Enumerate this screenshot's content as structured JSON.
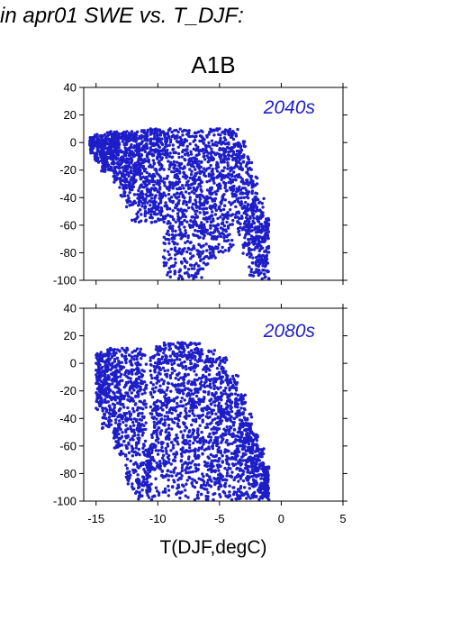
{
  "page": {
    "title": "in apr01 SWE vs. T_DJF:"
  },
  "colors": {
    "points": "#1e1ec8",
    "panel_label": "#1e1ec8",
    "axes": "#000000"
  },
  "chart_data": {
    "type": "scatter",
    "title": "A1B",
    "xlabel": "T(DJF,degC)",
    "xlim": [
      -16,
      5
    ],
    "x_ticks": [
      -15,
      -10,
      -5,
      0,
      5
    ],
    "grid": false,
    "panels": [
      {
        "label": "2040s",
        "ylim": [
          -100,
          40
        ],
        "y_ticks": [
          40,
          20,
          0,
          -20,
          -40,
          -60,
          -80,
          -100
        ],
        "point_cloud": [
          {
            "x": -15.5,
            "y": 1
          },
          {
            "x": -15.2,
            "y": -3
          },
          {
            "x": -14.5,
            "y": 4
          },
          {
            "x": -14.0,
            "y": -8
          },
          {
            "x": -13.5,
            "y": 6
          },
          {
            "x": -13.5,
            "y": -15
          },
          {
            "x": -13.0,
            "y": -22
          },
          {
            "x": -12.5,
            "y": 8
          },
          {
            "x": -12.0,
            "y": -30
          },
          {
            "x": -11.5,
            "y": -40
          },
          {
            "x": -11.0,
            "y": -50
          },
          {
            "x": -10.5,
            "y": -58
          },
          {
            "x": -10.0,
            "y": 9
          },
          {
            "x": -9.0,
            "y": 10
          },
          {
            "x": -8.0,
            "y": 8
          },
          {
            "x": -7.0,
            "y": 7
          },
          {
            "x": -6.0,
            "y": 4
          },
          {
            "x": -5.0,
            "y": 10
          },
          {
            "x": -4.5,
            "y": 2
          },
          {
            "x": -4.0,
            "y": -10
          },
          {
            "x": -3.5,
            "y": -25
          },
          {
            "x": -3.0,
            "y": -40
          },
          {
            "x": -2.5,
            "y": -55
          },
          {
            "x": -2.0,
            "y": -68
          },
          {
            "x": -1.5,
            "y": -82
          },
          {
            "x": -1.0,
            "y": -99
          },
          {
            "x": -5.5,
            "y": -80
          },
          {
            "x": -6.5,
            "y": -85
          },
          {
            "x": -8.0,
            "y": -99
          },
          {
            "x": -7.5,
            "y": -92
          }
        ]
      },
      {
        "label": "2080s",
        "ylim": [
          -100,
          40
        ],
        "y_ticks": [
          40,
          20,
          0,
          -20,
          -40,
          -60,
          -80,
          -100
        ],
        "point_cloud": [
          {
            "x": -15.0,
            "y": -5
          },
          {
            "x": -14.7,
            "y": 4
          },
          {
            "x": -14.5,
            "y": -20
          },
          {
            "x": -14.0,
            "y": 8
          },
          {
            "x": -13.5,
            "y": -35
          },
          {
            "x": -13.0,
            "y": -48
          },
          {
            "x": -12.5,
            "y": 11
          },
          {
            "x": -12.0,
            "y": -62
          },
          {
            "x": -11.5,
            "y": -75
          },
          {
            "x": -11.0,
            "y": -88
          },
          {
            "x": -10.5,
            "y": -99
          },
          {
            "x": -9.0,
            "y": 13
          },
          {
            "x": -8.0,
            "y": 15
          },
          {
            "x": -7.0,
            "y": 10
          },
          {
            "x": -6.0,
            "y": 5
          },
          {
            "x": -5.0,
            "y": -8
          },
          {
            "x": -4.5,
            "y": -22
          },
          {
            "x": -4.0,
            "y": -35
          },
          {
            "x": -3.5,
            "y": -50
          },
          {
            "x": -3.0,
            "y": -62
          },
          {
            "x": -2.5,
            "y": -75
          },
          {
            "x": -2.0,
            "y": -88
          },
          {
            "x": -1.5,
            "y": -96
          },
          {
            "x": -1.0,
            "y": -99
          },
          {
            "x": -7.0,
            "y": -99
          },
          {
            "x": -5.5,
            "y": -99
          },
          {
            "x": -4.0,
            "y": -99
          },
          {
            "x": -8.5,
            "y": -95
          },
          {
            "x": -6.5,
            "y": -90
          },
          {
            "x": -3.5,
            "y": -97
          }
        ]
      }
    ]
  }
}
